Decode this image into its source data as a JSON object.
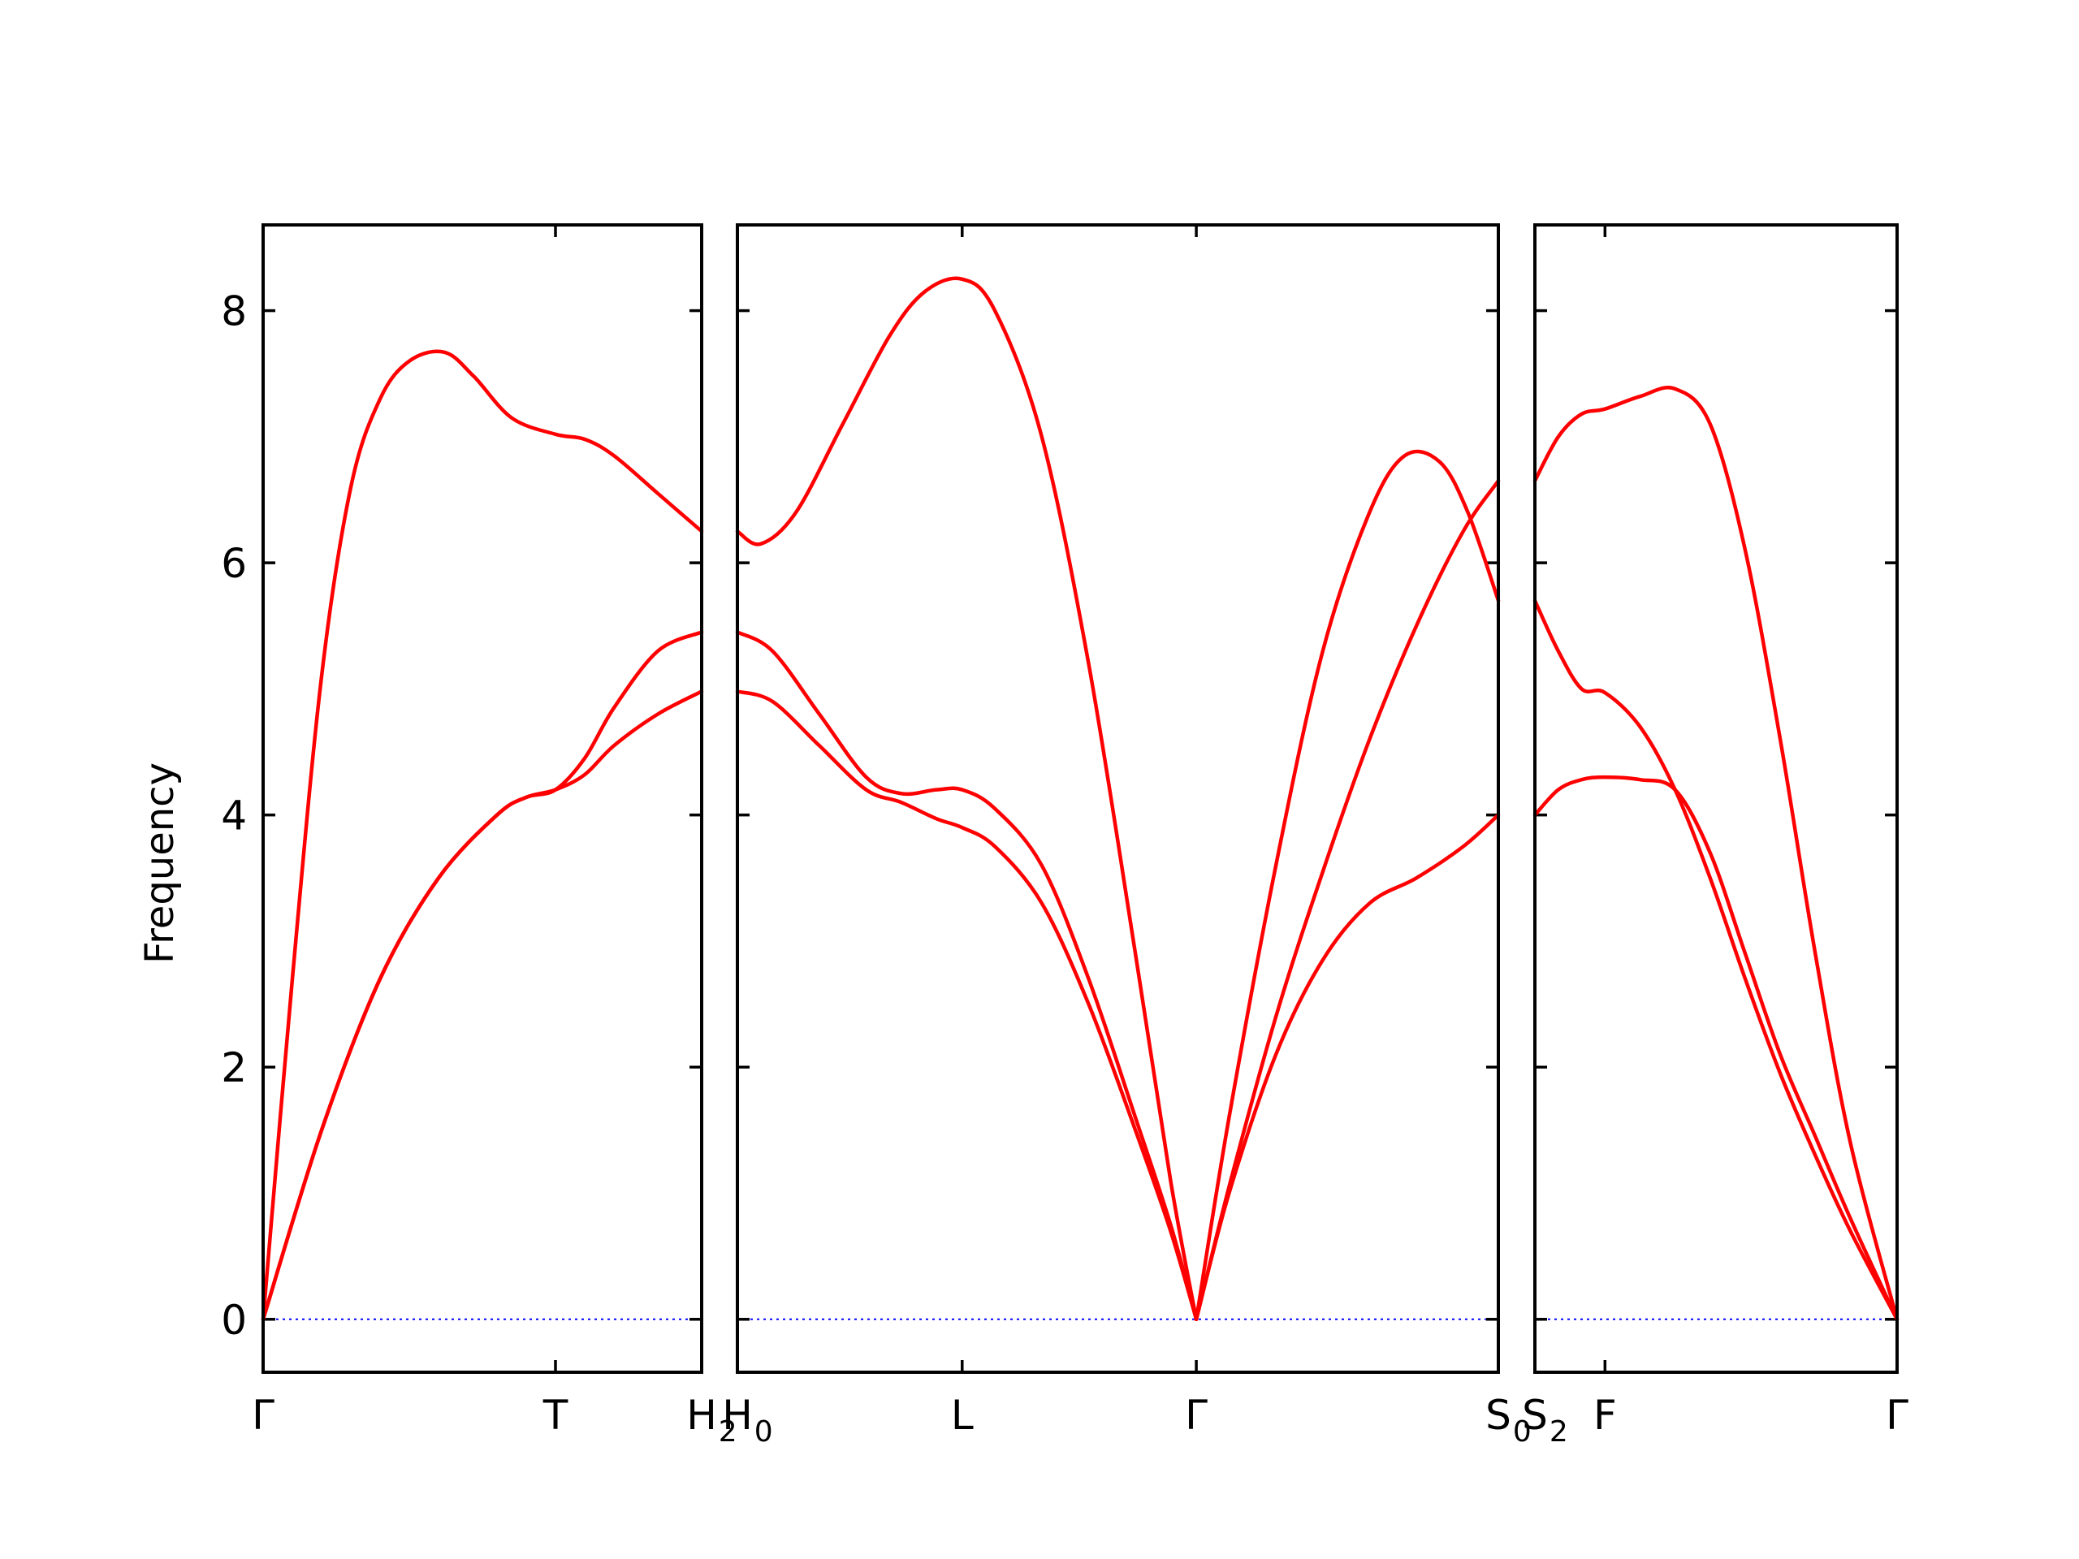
{
  "chart_data": {
    "type": "line",
    "ylabel": "Frequency",
    "ylim": [
      -0.42,
      8.68
    ],
    "yticks": [
      "0",
      "2",
      "4",
      "6",
      "8"
    ],
    "band_color": "#ff0000",
    "zero_line_color": "#0000ff",
    "panels": [
      {
        "xlim": [
          0,
          1.5
        ],
        "ticks": [
          {
            "x": 0,
            "label": "Γ"
          },
          {
            "x": 1.0,
            "label": "T"
          },
          {
            "x": 1.5,
            "label": "H",
            "sub": "2"
          }
        ],
        "series": [
          {
            "points": [
              [
                0,
                0
              ],
              [
                0.1,
                2.7
              ],
              [
                0.2,
                5.1
              ],
              [
                0.3,
                6.6
              ],
              [
                0.4,
                7.3
              ],
              [
                0.5,
                7.6
              ],
              [
                0.62,
                7.67
              ],
              [
                0.72,
                7.48
              ],
              [
                0.85,
                7.15
              ],
              [
                1.0,
                7.02
              ],
              [
                1.1,
                6.98
              ],
              [
                1.2,
                6.85
              ],
              [
                1.35,
                6.55
              ],
              [
                1.5,
                6.25
              ]
            ]
          },
          {
            "points": [
              [
                0,
                0
              ],
              [
                0.2,
                1.5
              ],
              [
                0.4,
                2.7
              ],
              [
                0.6,
                3.5
              ],
              [
                0.8,
                4.0
              ],
              [
                0.9,
                4.14
              ],
              [
                1.0,
                4.2
              ],
              [
                1.1,
                4.45
              ],
              [
                1.2,
                4.85
              ],
              [
                1.35,
                5.3
              ],
              [
                1.5,
                5.45
              ]
            ]
          },
          {
            "points": [
              [
                0,
                0
              ],
              [
                0.2,
                1.5
              ],
              [
                0.4,
                2.7
              ],
              [
                0.6,
                3.5
              ],
              [
                0.8,
                4.0
              ],
              [
                0.9,
                4.14
              ],
              [
                1.0,
                4.2
              ],
              [
                1.1,
                4.32
              ],
              [
                1.2,
                4.55
              ],
              [
                1.35,
                4.8
              ],
              [
                1.5,
                4.98
              ]
            ]
          }
        ]
      },
      {
        "xlim": [
          0,
          3.25
        ],
        "ticks": [
          {
            "x": 0,
            "label": "H",
            "sub": "0"
          },
          {
            "x": 0.96,
            "label": "L"
          },
          {
            "x": 1.96,
            "label": "Γ"
          },
          {
            "x": 3.25,
            "label": "S",
            "sub": "0"
          }
        ],
        "series": [
          {
            "points": [
              [
                0,
                6.25
              ],
              [
                0.1,
                6.15
              ],
              [
                0.25,
                6.4
              ],
              [
                0.45,
                7.1
              ],
              [
                0.65,
                7.8
              ],
              [
                0.8,
                8.15
              ],
              [
                0.96,
                8.25
              ],
              [
                1.1,
                8.0
              ],
              [
                1.3,
                7.0
              ],
              [
                1.5,
                5.2
              ],
              [
                1.7,
                2.9
              ],
              [
                1.85,
                1.1
              ],
              [
                1.96,
                0
              ]
            ]
          },
          {
            "points": [
              [
                0,
                5.45
              ],
              [
                0.15,
                5.3
              ],
              [
                0.35,
                4.8
              ],
              [
                0.55,
                4.3
              ],
              [
                0.7,
                4.17
              ],
              [
                0.85,
                4.2
              ],
              [
                0.96,
                4.2
              ],
              [
                1.1,
                4.05
              ],
              [
                1.3,
                3.6
              ],
              [
                1.5,
                2.7
              ],
              [
                1.7,
                1.6
              ],
              [
                1.85,
                0.75
              ],
              [
                1.96,
                0
              ]
            ]
          },
          {
            "points": [
              [
                0,
                4.98
              ],
              [
                0.15,
                4.9
              ],
              [
                0.35,
                4.55
              ],
              [
                0.55,
                4.2
              ],
              [
                0.7,
                4.1
              ],
              [
                0.85,
                3.97
              ],
              [
                0.96,
                3.9
              ],
              [
                1.1,
                3.75
              ],
              [
                1.3,
                3.3
              ],
              [
                1.5,
                2.5
              ],
              [
                1.7,
                1.5
              ],
              [
                1.85,
                0.7
              ],
              [
                1.96,
                0
              ]
            ]
          },
          {
            "points": [
              [
                1.96,
                0
              ],
              [
                2.1,
                1.6
              ],
              [
                2.3,
                3.6
              ],
              [
                2.5,
                5.3
              ],
              [
                2.7,
                6.4
              ],
              [
                2.85,
                6.85
              ],
              [
                3.0,
                6.8
              ],
              [
                3.12,
                6.4
              ],
              [
                3.25,
                5.7
              ]
            ]
          },
          {
            "points": [
              [
                1.96,
                0
              ],
              [
                2.1,
                1.05
              ],
              [
                2.3,
                2.4
              ],
              [
                2.5,
                3.55
              ],
              [
                2.7,
                4.6
              ],
              [
                2.9,
                5.5
              ],
              [
                3.1,
                6.25
              ],
              [
                3.25,
                6.65
              ]
            ]
          },
          {
            "points": [
              [
                1.96,
                0
              ],
              [
                2.1,
                1.0
              ],
              [
                2.3,
                2.1
              ],
              [
                2.5,
                2.85
              ],
              [
                2.7,
                3.3
              ],
              [
                2.9,
                3.5
              ],
              [
                3.1,
                3.75
              ],
              [
                3.25,
                4.0
              ]
            ]
          }
        ]
      },
      {
        "xlim": [
          0,
          1.55
        ],
        "ticks": [
          {
            "x": 0,
            "label": "S",
            "sub": "2"
          },
          {
            "x": 0.3,
            "label": "F"
          },
          {
            "x": 1.55,
            "label": "Γ"
          }
        ],
        "series": [
          {
            "points": [
              [
                0,
                6.65
              ],
              [
                0.1,
                7.0
              ],
              [
                0.2,
                7.18
              ],
              [
                0.3,
                7.22
              ],
              [
                0.45,
                7.32
              ],
              [
                0.6,
                7.38
              ],
              [
                0.75,
                7.1
              ],
              [
                0.9,
                6.1
              ],
              [
                1.05,
                4.6
              ],
              [
                1.2,
                2.9
              ],
              [
                1.35,
                1.4
              ],
              [
                1.55,
                0
              ]
            ]
          },
          {
            "points": [
              [
                0,
                5.7
              ],
              [
                0.1,
                5.3
              ],
              [
                0.2,
                5.0
              ],
              [
                0.3,
                4.97
              ],
              [
                0.45,
                4.7
              ],
              [
                0.6,
                4.2
              ],
              [
                0.75,
                3.5
              ],
              [
                0.9,
                2.7
              ],
              [
                1.05,
                1.95
              ],
              [
                1.2,
                1.3
              ],
              [
                1.35,
                0.7
              ],
              [
                1.55,
                0
              ]
            ]
          },
          {
            "points": [
              [
                0,
                4.0
              ],
              [
                0.1,
                4.2
              ],
              [
                0.2,
                4.28
              ],
              [
                0.3,
                4.3
              ],
              [
                0.45,
                4.28
              ],
              [
                0.6,
                4.2
              ],
              [
                0.75,
                3.7
              ],
              [
                0.9,
                2.9
              ],
              [
                1.05,
                2.1
              ],
              [
                1.2,
                1.45
              ],
              [
                1.35,
                0.8
              ],
              [
                1.55,
                0
              ]
            ]
          }
        ]
      }
    ]
  }
}
